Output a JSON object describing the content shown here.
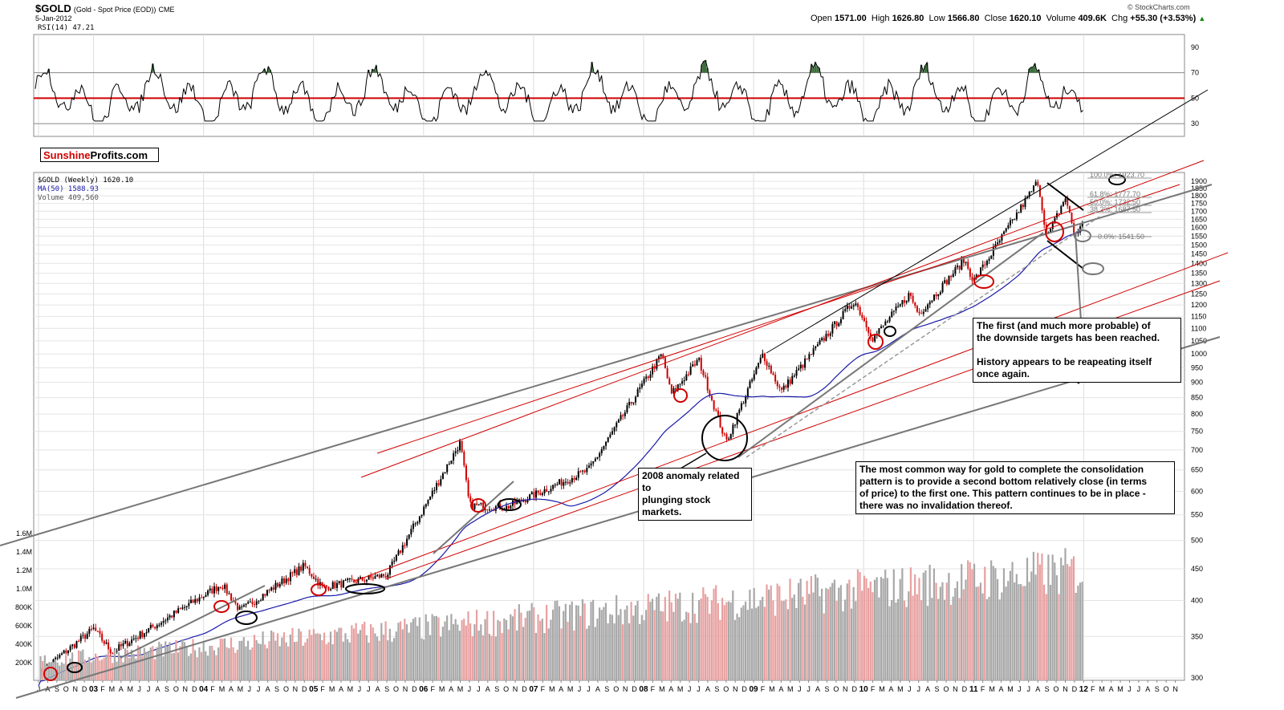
{
  "header": {
    "ticker": "$GOLD",
    "description": "(Gold - Spot Price (EOD))",
    "exchange": "CME",
    "date": "5-Jan-2012",
    "watermark": "© StockCharts.com",
    "quote": {
      "open_label": "Open",
      "open": "1571.00",
      "high_label": "High",
      "high": "1626.80",
      "low_label": "Low",
      "low": "1566.80",
      "close_label": "Close",
      "close": "1620.10",
      "volume_label": "Volume",
      "volume": "409.6K",
      "chg_label": "Chg",
      "chg": "+55.30 (+3.53%)",
      "chg_arrow": "▲"
    }
  },
  "brand": {
    "part1": "Sunshine",
    "part2": "Profits.com"
  },
  "legend": {
    "rsi": "RSI(14) 47.21",
    "gold": "$GOLD (Weekly) 1620.10",
    "ma": "MA(50) 1588.93",
    "volume": "Volume 409,560"
  },
  "annotations": {
    "anomaly": [
      "2008 anomaly related to",
      "plunging stock markets."
    ],
    "targets": [
      "The first (and much more probable) of",
      "the downside targets has been reached.",
      "",
      "History appears to be reapeating itself",
      "once again."
    ],
    "consolidation": [
      "The most common way for gold to complete the consolidation",
      "pattern is to provide a second bottom relatively close (in terms",
      "of price) to the first one. This pattern continues to be in place -",
      "there was no invalidation thereof."
    ]
  },
  "fib_labels": [
    "100.0%: 1923.70",
    "61.8%: 1777.70",
    "50.0%: 1732.50",
    "38.2%: 1687.50",
    "0.0%: 1541.50"
  ],
  "colors": {
    "up": "#000000",
    "down": "#d00000",
    "ma": "#1a1aa8",
    "rsi_fill": "#3c6e3c",
    "vol_gray": "#a8a8a8",
    "vol_red": "#e8a0a0"
  },
  "chart_data": [
    {
      "type": "line",
      "name": "RSI(14)",
      "title": "RSI(14) 47.21",
      "y_ticks": [
        30,
        50,
        70,
        90
      ],
      "ylim": [
        20,
        100
      ],
      "reference_lines": [
        30,
        50,
        70
      ],
      "last_value": 47.21
    },
    {
      "type": "line",
      "title": "$GOLD (Weekly) 1620.10",
      "scale": "log",
      "price_ticks": [
        300,
        350,
        400,
        450,
        500,
        550,
        600,
        650,
        700,
        750,
        800,
        850,
        900,
        950,
        1000,
        1050,
        1100,
        1150,
        1200,
        1250,
        1300,
        1350,
        1400,
        1450,
        1500,
        1550,
        1600,
        1650,
        1700,
        1750,
        1800,
        1850,
        1900
      ],
      "volume_ticks": [
        "200K",
        "400K",
        "600K",
        "800K",
        "1.0M",
        "1.2M",
        "1.4M",
        "1.6M"
      ],
      "x_ticks": [
        "J",
        "A",
        "S",
        "O",
        "N",
        "D",
        "03",
        "F",
        "M",
        "A",
        "M",
        "J",
        "J",
        "A",
        "S",
        "O",
        "N",
        "D",
        "04",
        "F",
        "M",
        "A",
        "M",
        "J",
        "J",
        "A",
        "S",
        "O",
        "N",
        "D",
        "05",
        "F",
        "M",
        "A",
        "M",
        "J",
        "J",
        "A",
        "S",
        "O",
        "N",
        "D",
        "06",
        "F",
        "M",
        "A",
        "M",
        "J",
        "J",
        "A",
        "S",
        "O",
        "N",
        "D",
        "07",
        "F",
        "M",
        "A",
        "M",
        "J",
        "J",
        "A",
        "S",
        "O",
        "N",
        "D",
        "08",
        "F",
        "M",
        "A",
        "M",
        "J",
        "J",
        "A",
        "S",
        "O",
        "N",
        "D",
        "09",
        "F",
        "M",
        "A",
        "M",
        "J",
        "J",
        "A",
        "S",
        "O",
        "N",
        "D",
        "10",
        "F",
        "M",
        "A",
        "M",
        "J",
        "J",
        "A",
        "S",
        "O",
        "N",
        "D",
        "11",
        "F",
        "M",
        "A",
        "M",
        "J",
        "J",
        "A",
        "S",
        "O",
        "N",
        "D",
        "12",
        "F",
        "M",
        "A",
        "M",
        "J",
        "J",
        "A",
        "S",
        "O",
        "N"
      ],
      "anchors": [
        {
          "date": "2002-07",
          "price": 305
        },
        {
          "date": "2003-01",
          "price": 360
        },
        {
          "date": "2003-03",
          "price": 330
        },
        {
          "date": "2004-03",
          "price": 425
        },
        {
          "date": "2004-05",
          "price": 385
        },
        {
          "date": "2004-12",
          "price": 455
        },
        {
          "date": "2005-02",
          "price": 420
        },
        {
          "date": "2005-09",
          "price": 440
        },
        {
          "date": "2006-05",
          "price": 720
        },
        {
          "date": "2006-06",
          "price": 570
        },
        {
          "date": "2006-10",
          "price": 565
        },
        {
          "date": "2007-07",
          "price": 650
        },
        {
          "date": "2008-03",
          "price": 1000
        },
        {
          "date": "2008-04",
          "price": 860
        },
        {
          "date": "2008-07",
          "price": 980
        },
        {
          "date": "2008-10",
          "price": 720
        },
        {
          "date": "2009-02",
          "price": 1000
        },
        {
          "date": "2009-04",
          "price": 870
        },
        {
          "date": "2009-12",
          "price": 1220
        },
        {
          "date": "2010-02",
          "price": 1060
        },
        {
          "date": "2010-06",
          "price": 1250
        },
        {
          "date": "2010-07",
          "price": 1160
        },
        {
          "date": "2010-12",
          "price": 1420
        },
        {
          "date": "2011-01",
          "price": 1310
        },
        {
          "date": "2011-08",
          "price": 1900
        },
        {
          "date": "2011-09",
          "price": 1540
        },
        {
          "date": "2011-11",
          "price": 1790
        },
        {
          "date": "2011-12",
          "price": 1560
        },
        {
          "date": "2012-01",
          "price": 1620
        }
      ]
    }
  ]
}
